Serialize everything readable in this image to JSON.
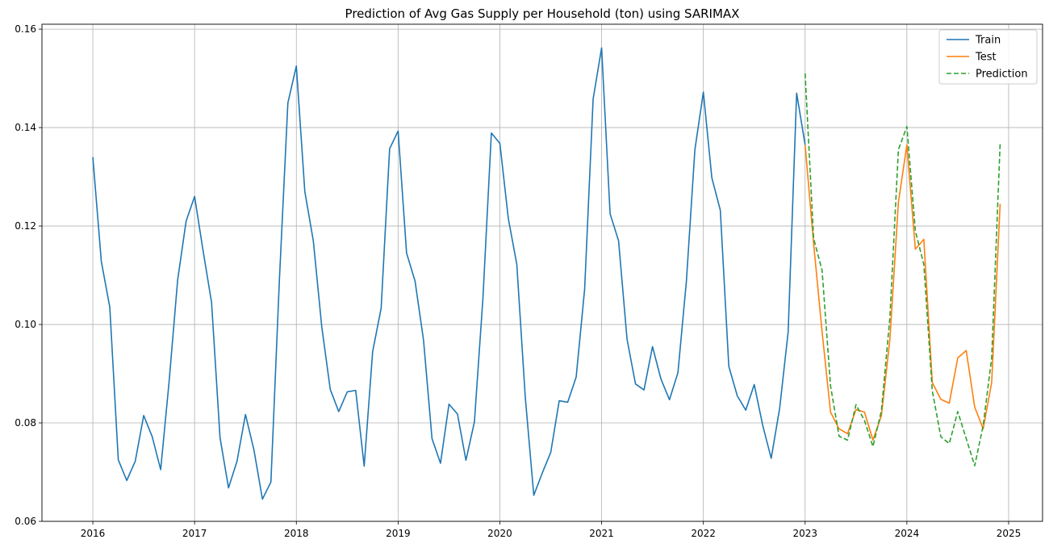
{
  "chart_data": {
    "type": "line",
    "title": "Prediction of Avg Gas Supply per Household (ton) using SARIMAX",
    "xlabel": "",
    "ylabel": "",
    "x_axis_type": "date",
    "xlim": [
      "2015-07-01",
      "2025-05-01"
    ],
    "ylim": [
      0.06,
      0.161
    ],
    "x_ticks": [
      "2016",
      "2017",
      "2018",
      "2019",
      "2020",
      "2021",
      "2022",
      "2023",
      "2024",
      "2025"
    ],
    "y_ticks": [
      "0.06",
      "0.08",
      "0.10",
      "0.12",
      "0.14",
      "0.16"
    ],
    "grid": true,
    "legend_position": "top-right",
    "series": [
      {
        "name": "Train",
        "color": "#1f77b4",
        "style": "solid",
        "x": [
          "2016-01",
          "2016-02",
          "2016-03",
          "2016-04",
          "2016-05",
          "2016-06",
          "2016-07",
          "2016-08",
          "2016-09",
          "2016-10",
          "2016-11",
          "2016-12",
          "2017-01",
          "2017-02",
          "2017-03",
          "2017-04",
          "2017-05",
          "2017-06",
          "2017-07",
          "2017-08",
          "2017-09",
          "2017-10",
          "2017-11",
          "2017-12",
          "2018-01",
          "2018-02",
          "2018-03",
          "2018-04",
          "2018-05",
          "2018-06",
          "2018-07",
          "2018-08",
          "2018-09",
          "2018-10",
          "2018-11",
          "2018-12",
          "2019-01",
          "2019-02",
          "2019-03",
          "2019-04",
          "2019-05",
          "2019-06",
          "2019-07",
          "2019-08",
          "2019-09",
          "2019-10",
          "2019-11",
          "2019-12",
          "2020-01",
          "2020-02",
          "2020-03",
          "2020-04",
          "2020-05",
          "2020-06",
          "2020-07",
          "2020-08",
          "2020-09",
          "2020-10",
          "2020-11",
          "2020-12",
          "2021-01",
          "2021-02",
          "2021-03",
          "2021-04",
          "2021-05",
          "2021-06",
          "2021-07",
          "2021-08",
          "2021-09",
          "2021-10",
          "2021-11",
          "2021-12",
          "2022-01",
          "2022-02",
          "2022-03",
          "2022-04",
          "2022-05",
          "2022-06",
          "2022-07",
          "2022-08",
          "2022-09",
          "2022-10",
          "2022-11",
          "2022-12",
          "2023-01"
        ],
        "values": [
          0.134,
          0.1128,
          0.1035,
          0.0725,
          0.0683,
          0.0722,
          0.0815,
          0.0772,
          0.0705,
          0.0885,
          0.109,
          0.121,
          0.126,
          0.115,
          0.1045,
          0.077,
          0.0668,
          0.0722,
          0.0817,
          0.0745,
          0.0645,
          0.068,
          0.109,
          0.145,
          0.1525,
          0.127,
          0.117,
          0.0995,
          0.0868,
          0.0823,
          0.0863,
          0.0866,
          0.0712,
          0.0945,
          0.1033,
          0.1357,
          0.1393,
          0.1145,
          0.1088,
          0.0968,
          0.0768,
          0.0718,
          0.0838,
          0.0818,
          0.0724,
          0.0802,
          0.1052,
          0.1389,
          0.1368,
          0.1215,
          0.1122,
          0.0852,
          0.0653,
          0.0698,
          0.074,
          0.0845,
          0.0842,
          0.0893,
          0.1072,
          0.1458,
          0.1562,
          0.1225,
          0.117,
          0.097,
          0.0879,
          0.0867,
          0.0955,
          0.0889,
          0.0847,
          0.0902,
          0.1088,
          0.1355,
          0.1472,
          0.1298,
          0.1232,
          0.0915,
          0.0855,
          0.0826,
          0.0878,
          0.0795,
          0.0728,
          0.083,
          0.0985,
          0.147,
          0.1365
        ]
      },
      {
        "name": "Test",
        "color": "#ff7f0e",
        "style": "solid",
        "x": [
          "2023-01",
          "2023-02",
          "2023-03",
          "2023-04",
          "2023-05",
          "2023-06",
          "2023-07",
          "2023-08",
          "2023-09",
          "2023-10",
          "2023-11",
          "2023-12",
          "2024-01",
          "2024-02",
          "2024-03",
          "2024-04",
          "2024-05",
          "2024-06",
          "2024-07",
          "2024-08",
          "2024-09",
          "2024-10",
          "2024-11",
          "2024-12"
        ],
        "values": [
          0.1365,
          0.1165,
          0.0985,
          0.0822,
          0.0788,
          0.0778,
          0.0827,
          0.0822,
          0.0765,
          0.0815,
          0.097,
          0.1248,
          0.1365,
          0.1153,
          0.1173,
          0.0882,
          0.0848,
          0.084,
          0.0932,
          0.0947,
          0.0832,
          0.0788,
          0.0882,
          0.1245
        ]
      },
      {
        "name": "Prediction",
        "color": "#2ca02c",
        "style": "dashed",
        "x": [
          "2023-01",
          "2023-02",
          "2023-03",
          "2023-04",
          "2023-05",
          "2023-06",
          "2023-07",
          "2023-08",
          "2023-09",
          "2023-10",
          "2023-11",
          "2023-12",
          "2024-01",
          "2024-02",
          "2024-03",
          "2024-04",
          "2024-05",
          "2024-06",
          "2024-07",
          "2024-08",
          "2024-09",
          "2024-10",
          "2024-11",
          "2024-12"
        ],
        "values": [
          0.151,
          0.1175,
          0.111,
          0.0875,
          0.0773,
          0.0765,
          0.0837,
          0.0805,
          0.0752,
          0.0825,
          0.1015,
          0.1355,
          0.1402,
          0.119,
          0.1122,
          0.0865,
          0.0772,
          0.0758,
          0.0823,
          0.0768,
          0.0713,
          0.0795,
          0.0932,
          0.1368
        ]
      }
    ]
  }
}
